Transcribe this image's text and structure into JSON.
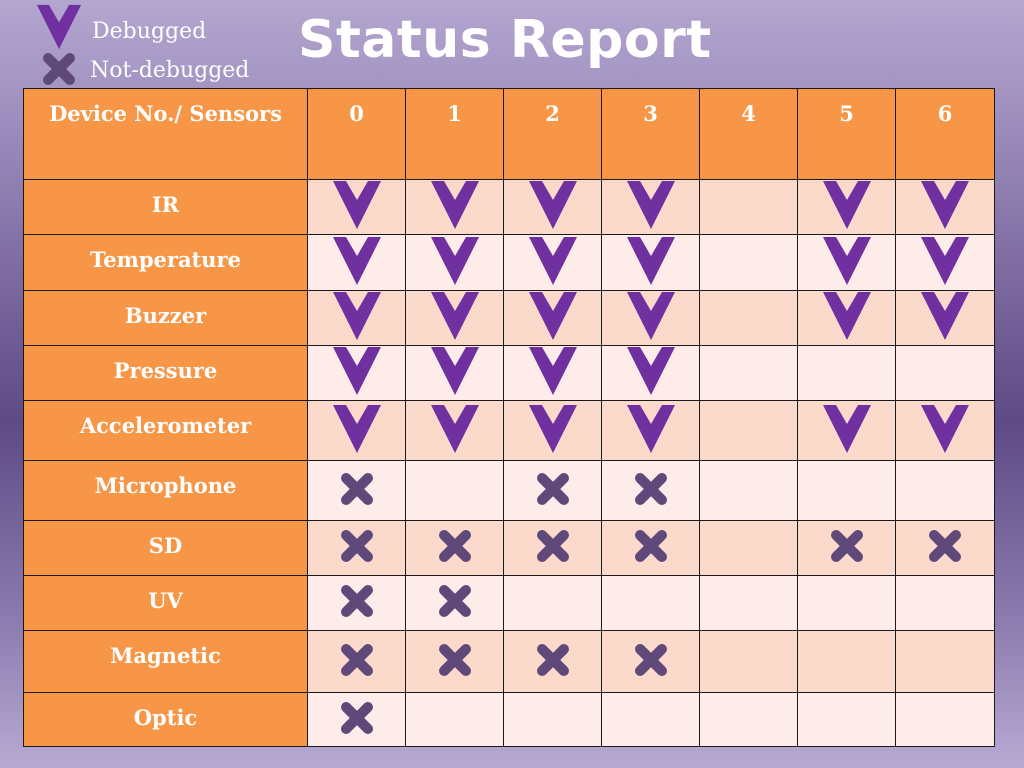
{
  "title": "Status Report",
  "legend": {
    "debugged_label": "Debugged",
    "not_debugged_label": "Not-debugged"
  },
  "colors": {
    "header_bg": "#f79646",
    "row_odd": "#fbd9cb",
    "row_even": "#fdecea",
    "check": "#7030a0",
    "cross": "#5f497a"
  },
  "table": {
    "corner_label": "Device No./ Sensors",
    "devices": [
      "0",
      "1",
      "2",
      "3",
      "4",
      "5",
      "6"
    ],
    "rows": [
      {
        "sensor": "IR",
        "status": [
          "debugged",
          "debugged",
          "debugged",
          "debugged",
          "",
          "debugged",
          "debugged"
        ]
      },
      {
        "sensor": "Temperature",
        "status": [
          "debugged",
          "debugged",
          "debugged",
          "debugged",
          "",
          "debugged",
          "debugged"
        ]
      },
      {
        "sensor": "Buzzer",
        "status": [
          "debugged",
          "debugged",
          "debugged",
          "debugged",
          "",
          "debugged",
          "debugged"
        ]
      },
      {
        "sensor": "Pressure",
        "status": [
          "debugged",
          "debugged",
          "debugged",
          "debugged",
          "",
          "",
          ""
        ]
      },
      {
        "sensor": "Accelerometer",
        "status": [
          "debugged",
          "debugged",
          "debugged",
          "debugged",
          "",
          "debugged",
          "debugged"
        ]
      },
      {
        "sensor": "Microphone",
        "status": [
          "not-debugged",
          "",
          "not-debugged",
          "not-debugged",
          "",
          "",
          ""
        ]
      },
      {
        "sensor": "SD",
        "status": [
          "not-debugged",
          "not-debugged",
          "not-debugged",
          "not-debugged",
          "",
          "not-debugged",
          "not-debugged"
        ]
      },
      {
        "sensor": "UV",
        "status": [
          "not-debugged",
          "not-debugged",
          "",
          "",
          "",
          "",
          ""
        ]
      },
      {
        "sensor": "Magnetic",
        "status": [
          "not-debugged",
          "not-debugged",
          "not-debugged",
          "not-debugged",
          "",
          "",
          ""
        ]
      },
      {
        "sensor": "Optic",
        "status": [
          "not-debugged",
          "",
          "",
          "",
          "",
          "",
          ""
        ]
      }
    ]
  }
}
